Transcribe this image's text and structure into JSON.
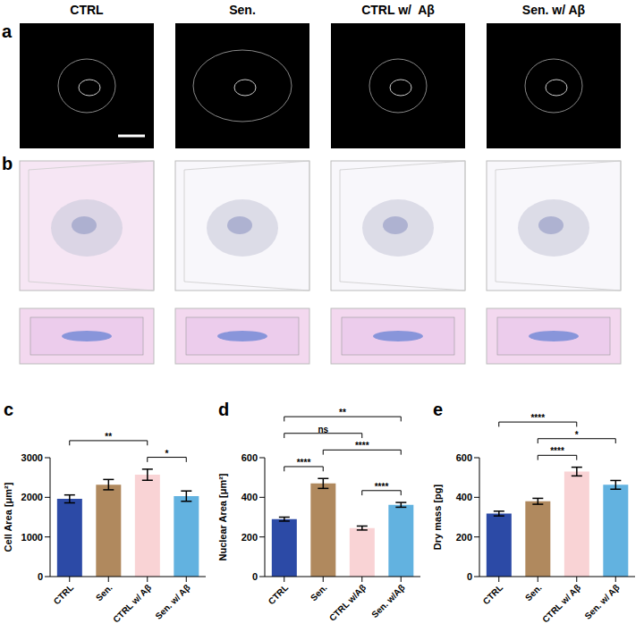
{
  "panels": {
    "a": {
      "label": "a",
      "titles": [
        "CTRL",
        "Sen.",
        "CTRL w/  Aβ",
        "Sen. w/ Aβ"
      ]
    },
    "b": {
      "label": "b"
    }
  },
  "chart_data": [
    {
      "type": "bar",
      "panel_label": "c",
      "y_label": "Cell Area [μm²]",
      "categories": [
        "CTRL",
        "Sen.",
        "CTRL w/ Aβ",
        "Sen. w/ Aβ"
      ],
      "values": [
        1960,
        2320,
        2570,
        2030
      ],
      "errors": [
        100,
        130,
        140,
        130
      ],
      "colors": [
        "#2c4aa6",
        "#b0895e",
        "#f9d3d5",
        "#62b2e0"
      ],
      "ylim": [
        0,
        3000
      ],
      "yticks": [
        0,
        1000,
        2000,
        3000
      ],
      "grid": false,
      "annotations": [
        {
          "from": "CTRL",
          "to": "CTRL w/ Aβ",
          "text": "**"
        },
        {
          "from": "CTRL w/ Aβ",
          "to": "Sen. w/ Aβ",
          "text": "*"
        }
      ]
    },
    {
      "type": "bar",
      "panel_label": "d",
      "y_label": "Nuclear Area [μm²]",
      "categories": [
        "CTRL",
        "Sen.",
        "CTRL w/Aβ",
        "Sen. w/Aβ"
      ],
      "values": [
        290,
        470,
        245,
        362
      ],
      "errors": [
        10,
        25,
        10,
        12
      ],
      "colors": [
        "#2c4aa6",
        "#b0895e",
        "#f9d3d5",
        "#62b2e0"
      ],
      "ylim": [
        0,
        600
      ],
      "yticks": [
        0,
        200,
        400,
        600
      ],
      "grid": false,
      "annotations": [
        {
          "from": "CTRL",
          "to": "Sen. w/Aβ",
          "text": "**"
        },
        {
          "from": "Sen.",
          "to": "Sen. w/Aβ",
          "text": "****"
        },
        {
          "from": "CTRL",
          "to": "CTRL w/Aβ",
          "text": "ns"
        },
        {
          "from": "CTRL",
          "to": "Sen.",
          "text": "****"
        },
        {
          "from": "CTRL w/Aβ",
          "to": "Sen. w/Aβ",
          "text": "****"
        }
      ]
    },
    {
      "type": "bar",
      "panel_label": "e",
      "y_label": "Dry mass [pg]",
      "categories": [
        "CTRL",
        "Sen.",
        "CTRL w/ Aβ",
        "Sen. w/ Aβ"
      ],
      "values": [
        318,
        380,
        530,
        463
      ],
      "errors": [
        12,
        15,
        22,
        22
      ],
      "colors": [
        "#2c4aa6",
        "#b0895e",
        "#f9d3d5",
        "#62b2e0"
      ],
      "ylim": [
        0,
        600
      ],
      "yticks": [
        0,
        200,
        400,
        600
      ],
      "grid": false,
      "annotations": [
        {
          "from": "Sen.",
          "to": "Sen. w/ Aβ",
          "text": "*"
        },
        {
          "from": "CTRL",
          "to": "CTRL w/ Aβ",
          "text": "****"
        },
        {
          "from": "Sen.",
          "to": "CTRL w/ Aβ",
          "text": "****"
        }
      ]
    }
  ]
}
